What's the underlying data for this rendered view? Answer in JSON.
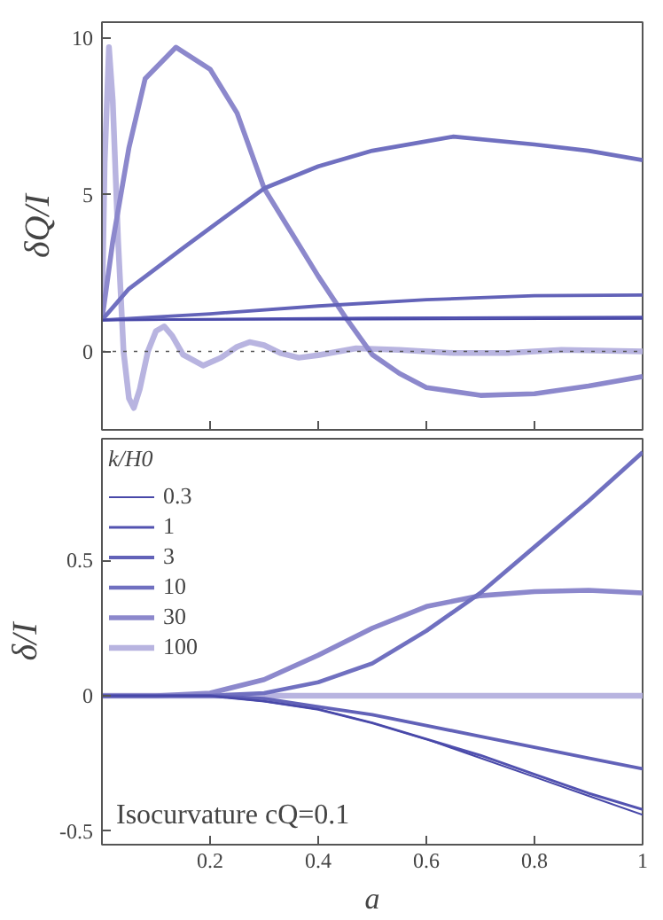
{
  "chart_data": [
    {
      "type": "line",
      "ylabel": "δQ/I",
      "xlim": [
        0,
        1
      ],
      "ylim": [
        -2.5,
        10.5
      ],
      "xticks": [
        0.2,
        0.4,
        0.6,
        0.8,
        1
      ],
      "yticks": [
        0,
        5,
        10
      ],
      "tick_labels": "y",
      "grid": false,
      "legend": false,
      "ref_lines": [
        {
          "axis": "y",
          "value": 0,
          "line_style": "dotted",
          "color": "#555555"
        }
      ],
      "series": [
        {
          "color": "#4848a8",
          "x": [
            0,
            0.5,
            1
          ],
          "values": [
            1.0,
            1.02,
            1.04
          ]
        },
        {
          "color": "#5252b0",
          "x": [
            0,
            0.5,
            1
          ],
          "values": [
            1.0,
            1.07,
            1.1
          ]
        },
        {
          "color": "#6262b8",
          "x": [
            0,
            0.2,
            0.4,
            0.6,
            0.8,
            1
          ],
          "values": [
            1.0,
            1.2,
            1.45,
            1.65,
            1.78,
            1.8
          ]
        },
        {
          "color": "#7070c0",
          "x": [
            0,
            0.05,
            0.15,
            0.3,
            0.4,
            0.5,
            0.65,
            0.8,
            0.9,
            1
          ],
          "values": [
            1.0,
            2.0,
            3.3,
            5.2,
            5.9,
            6.4,
            6.85,
            6.6,
            6.4,
            6.1
          ]
        },
        {
          "color": "#8c88cc",
          "x": [
            0,
            0.02,
            0.05,
            0.08,
            0.137,
            0.2,
            0.25,
            0.3,
            0.35,
            0.4,
            0.45,
            0.5,
            0.55,
            0.6,
            0.7,
            0.8,
            0.9,
            1
          ],
          "values": [
            1.0,
            3.5,
            6.5,
            8.7,
            9.7,
            9.0,
            7.6,
            5.2,
            3.8,
            2.4,
            1.1,
            -0.1,
            -0.7,
            -1.15,
            -1.4,
            -1.35,
            -1.1,
            -0.8
          ]
        },
        {
          "color": "#b8b4e0",
          "x": [
            0,
            0.005,
            0.013,
            0.02,
            0.03,
            0.04,
            0.05,
            0.059,
            0.07,
            0.085,
            0.1,
            0.115,
            0.13,
            0.15,
            0.187,
            0.22,
            0.25,
            0.273,
            0.3,
            0.33,
            0.364,
            0.4,
            0.47,
            0.55,
            0.65,
            0.75,
            0.85,
            1
          ],
          "values": [
            1.0,
            6.0,
            9.7,
            8.0,
            3.5,
            0.0,
            -1.5,
            -1.8,
            -1.2,
            0.0,
            0.65,
            0.8,
            0.5,
            -0.1,
            -0.45,
            -0.2,
            0.15,
            0.3,
            0.2,
            -0.05,
            -0.2,
            -0.12,
            0.1,
            0.05,
            -0.05,
            -0.05,
            0.05,
            0.0
          ]
        }
      ]
    },
    {
      "type": "line",
      "xlabel": "a",
      "ylabel": "δ/I",
      "legend_title": "k/H0",
      "legend": "top left",
      "grid": false,
      "xlim": [
        0,
        1
      ],
      "ylim": [
        -0.55,
        0.95
      ],
      "xticks": [
        0.2,
        0.4,
        0.6,
        0.8,
        1
      ],
      "yticks": [
        -0.5,
        0,
        0.5
      ],
      "annotations": [
        "Isocurvature cQ=0.1"
      ],
      "series": [
        {
          "name": "0.3",
          "color": "#4848a8",
          "x": [
            0,
            0.2,
            0.3,
            0.4,
            0.5,
            0.6,
            0.7,
            0.8,
            0.9,
            1
          ],
          "values": [
            0,
            0,
            -0.02,
            -0.05,
            -0.1,
            -0.16,
            -0.23,
            -0.3,
            -0.37,
            -0.44
          ]
        },
        {
          "name": "1",
          "color": "#5252b0",
          "x": [
            0,
            0.2,
            0.3,
            0.4,
            0.5,
            0.6,
            0.7,
            0.8,
            0.9,
            1
          ],
          "values": [
            0,
            0,
            -0.02,
            -0.05,
            -0.1,
            -0.16,
            -0.22,
            -0.29,
            -0.36,
            -0.42
          ]
        },
        {
          "name": "3",
          "color": "#6262b8",
          "x": [
            0,
            0.2,
            0.3,
            0.4,
            0.5,
            0.6,
            0.7,
            0.8,
            0.9,
            1
          ],
          "values": [
            0,
            0,
            -0.01,
            -0.04,
            -0.07,
            -0.11,
            -0.15,
            -0.19,
            -0.23,
            -0.27
          ]
        },
        {
          "name": "10",
          "color": "#7070c0",
          "x": [
            0,
            0.2,
            0.3,
            0.4,
            0.5,
            0.6,
            0.7,
            0.8,
            0.9,
            1
          ],
          "values": [
            0,
            0,
            0.01,
            0.05,
            0.12,
            0.24,
            0.38,
            0.55,
            0.72,
            0.9
          ]
        },
        {
          "name": "30",
          "color": "#8c88cc",
          "x": [
            0,
            0.1,
            0.2,
            0.3,
            0.4,
            0.5,
            0.6,
            0.7,
            0.8,
            0.9,
            1
          ],
          "values": [
            0,
            0,
            0.01,
            0.06,
            0.15,
            0.25,
            0.33,
            0.37,
            0.385,
            0.39,
            0.38
          ]
        },
        {
          "name": "100",
          "color": "#b8b4e0",
          "x": [
            0,
            0.5,
            1
          ],
          "values": [
            0,
            0,
            0
          ]
        }
      ]
    }
  ]
}
